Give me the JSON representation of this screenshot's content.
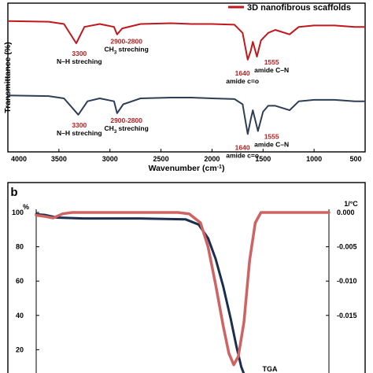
{
  "chart_data": [
    {
      "type": "line",
      "panel": "",
      "xlabel": "Wavenumber (cm⁻¹)",
      "ylabel": "Transmittance (%)",
      "xlim": [
        4000,
        500
      ],
      "x_reversed": true,
      "x_ticks": [
        4000,
        3500,
        3000,
        2500,
        2000,
        1500,
        1000,
        500
      ],
      "legend": {
        "position": "top-right"
      },
      "grid": false,
      "series": [
        {
          "name": "3D nanofibrous scaffolds",
          "color": "#c0181d",
          "points": [
            [
              4000,
              0.88
            ],
            [
              3600,
              0.875
            ],
            [
              3450,
              0.86
            ],
            [
              3330,
              0.73
            ],
            [
              3250,
              0.84
            ],
            [
              3100,
              0.86
            ],
            [
              2960,
              0.84
            ],
            [
              2930,
              0.79
            ],
            [
              2880,
              0.83
            ],
            [
              2700,
              0.86
            ],
            [
              2400,
              0.865
            ],
            [
              2200,
              0.86
            ],
            [
              2000,
              0.86
            ],
            [
              1780,
              0.855
            ],
            [
              1700,
              0.8
            ],
            [
              1650,
              0.62
            ],
            [
              1620,
              0.68
            ],
            [
              1600,
              0.74
            ],
            [
              1560,
              0.64
            ],
            [
              1520,
              0.75
            ],
            [
              1450,
              0.8
            ],
            [
              1380,
              0.82
            ],
            [
              1240,
              0.79
            ],
            [
              1150,
              0.84
            ],
            [
              1000,
              0.85
            ],
            [
              800,
              0.85
            ],
            [
              600,
              0.84
            ],
            [
              500,
              0.84
            ]
          ]
        },
        {
          "color": "#2e3f55",
          "points": [
            [
              4000,
              0.38
            ],
            [
              3600,
              0.375
            ],
            [
              3450,
              0.36
            ],
            [
              3310,
              0.25
            ],
            [
              3220,
              0.34
            ],
            [
              3100,
              0.36
            ],
            [
              2960,
              0.34
            ],
            [
              2930,
              0.26
            ],
            [
              2870,
              0.32
            ],
            [
              2700,
              0.36
            ],
            [
              2400,
              0.365
            ],
            [
              2200,
              0.365
            ],
            [
              2000,
              0.36
            ],
            [
              1780,
              0.355
            ],
            [
              1700,
              0.32
            ],
            [
              1650,
              0.12
            ],
            [
              1620,
              0.22
            ],
            [
              1600,
              0.28
            ],
            [
              1550,
              0.14
            ],
            [
              1500,
              0.27
            ],
            [
              1450,
              0.31
            ],
            [
              1380,
              0.31
            ],
            [
              1240,
              0.28
            ],
            [
              1150,
              0.34
            ],
            [
              1000,
              0.35
            ],
            [
              800,
              0.35
            ],
            [
              600,
              0.34
            ],
            [
              500,
              0.34
            ]
          ]
        }
      ],
      "annotations": [
        {
          "values": [
            "3300",
            "N–H streching"
          ],
          "x": 3300,
          "series": 0
        },
        {
          "values": [
            "2900-2800",
            "CH₃ streching"
          ],
          "x": 2900,
          "series": 0
        },
        {
          "values": [
            "1640",
            "amide c=o"
          ],
          "x": 1640,
          "series": 0
        },
        {
          "values": [
            "1555",
            "amide C–N"
          ],
          "x": 1555,
          "series": 0
        },
        {
          "values": [
            "3300",
            "N–H streching"
          ],
          "x": 3300,
          "series": 1
        },
        {
          "values": [
            "2900-2800",
            "CH₃ streching"
          ],
          "x": 2900,
          "series": 1
        },
        {
          "values": [
            "1640",
            "amide c=o"
          ],
          "x": 1640,
          "series": 1
        },
        {
          "values": [
            "1555",
            "amide C–N"
          ],
          "x": 1555,
          "series": 1
        }
      ]
    },
    {
      "type": "line",
      "panel": "b",
      "yunit_left": "%",
      "yunit_right": "1/°C",
      "ylim_left": [
        0,
        100
      ],
      "ylim_right": [
        -0.0225,
        0.0
      ],
      "y_ticks_left": [
        20,
        40,
        60,
        80,
        100
      ],
      "y_ticks_right": [
        "0.000",
        "-0.005",
        "-0.010",
        "-0.015"
      ],
      "y_ticks_right_values": [
        0.0,
        -0.005,
        -0.01,
        -0.015
      ],
      "temperature_range": [
        25,
        800
      ],
      "label_text": "TGA",
      "series": [
        {
          "color": "#1c2e4e",
          "axis": "left",
          "points": [
            [
              25,
              99
            ],
            [
              50,
              98.5
            ],
            [
              80,
              97
            ],
            [
              150,
              96.5
            ],
            [
              300,
              96.5
            ],
            [
              420,
              96
            ],
            [
              455,
              93
            ],
            [
              480,
              85
            ],
            [
              500,
              73
            ],
            [
              520,
              57
            ],
            [
              540,
              38
            ],
            [
              555,
              22
            ],
            [
              568,
              10
            ],
            [
              580,
              3
            ]
          ]
        },
        {
          "color": "#cf6363",
          "axis": "right",
          "points": [
            [
              25,
              -0.0004
            ],
            [
              50,
              -0.0006
            ],
            [
              70,
              -0.0008
            ],
            [
              95,
              -0.0002
            ],
            [
              120,
              0.0
            ],
            [
              300,
              0.0
            ],
            [
              400,
              0.0
            ],
            [
              430,
              -0.0002
            ],
            [
              460,
              -0.0015
            ],
            [
              480,
              -0.005
            ],
            [
              500,
              -0.0105
            ],
            [
              520,
              -0.0165
            ],
            [
              535,
              -0.0205
            ],
            [
              548,
              -0.0222
            ],
            [
              560,
              -0.021
            ],
            [
              575,
              -0.016
            ],
            [
              590,
              -0.007
            ],
            [
              605,
              -0.0015
            ],
            [
              620,
              0.0
            ],
            [
              800,
              0.0
            ]
          ]
        }
      ]
    }
  ]
}
